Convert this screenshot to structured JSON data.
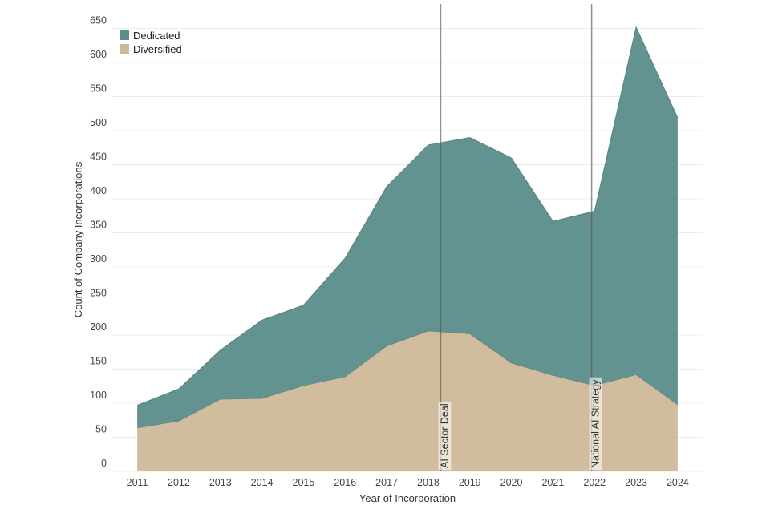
{
  "chart_data": {
    "type": "area",
    "stacked": true,
    "x": [
      2011,
      2012,
      2013,
      2014,
      2015,
      2016,
      2017,
      2018,
      2019,
      2020,
      2021,
      2022,
      2023,
      2024
    ],
    "x_labels": [
      "2011",
      "2012",
      "2013",
      "2014",
      "2015",
      "2016",
      "2017",
      "2018",
      "2019",
      "2020",
      "2021",
      "2022",
      "2023",
      "2024"
    ],
    "series": [
      {
        "name": "Diversified",
        "values": [
          64,
          74,
          106,
          107,
          126,
          139,
          184,
          206,
          202,
          159,
          141,
          126,
          142,
          98
        ],
        "color": "#cfb898"
      },
      {
        "name": "Dedicated",
        "values": [
          33,
          47,
          72,
          115,
          118,
          174,
          234,
          273,
          288,
          301,
          226,
          256,
          510,
          421
        ],
        "color": "#5a8d8a"
      }
    ],
    "xlabel": "Year of Incorporation",
    "ylabel": "Count of Company Incorporations",
    "ylim": [
      0,
      680
    ],
    "yticks": [
      0,
      50,
      100,
      150,
      200,
      250,
      300,
      350,
      400,
      450,
      500,
      550,
      600,
      650
    ],
    "legend": {
      "position": "top-left",
      "entries": [
        "Dedicated",
        "Diversified"
      ]
    },
    "annotations": [
      {
        "label": "AI Sector Deal",
        "x": 2018.3
      },
      {
        "label": "National AI Strategy",
        "x": 2021.93
      }
    ]
  }
}
